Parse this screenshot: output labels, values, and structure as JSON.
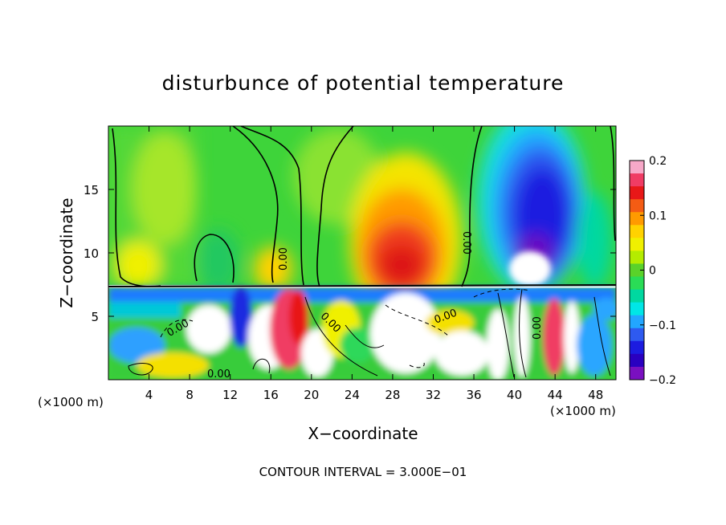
{
  "chart_data": {
    "type": "heatmap",
    "title": "disturbunce of potential temperature",
    "xlabel": "X−coordinate",
    "ylabel": "Z−coordinate",
    "x_unit_label": "(×1000 m)",
    "z_unit_label": "(×1000 m)",
    "xlim": [
      0,
      50
    ],
    "ylim": [
      0,
      20
    ],
    "x_ticks": [
      4,
      8,
      12,
      16,
      20,
      24,
      28,
      32,
      36,
      40,
      44,
      48
    ],
    "y_ticks": [
      5,
      10,
      15
    ],
    "x_tick_labels": [
      "4",
      "8",
      "12",
      "16",
      "20",
      "24",
      "28",
      "32",
      "36",
      "40",
      "44",
      "48"
    ],
    "y_tick_labels": [
      "5",
      "10",
      "15"
    ],
    "colorbar": {
      "min": -0.2,
      "max": 0.2,
      "ticks": [
        0.2,
        0.1,
        0,
        -0.1,
        -0.2
      ],
      "tick_labels": [
        "0.2",
        "0.1",
        "0",
        "−0.1",
        "−0.2"
      ],
      "colors": [
        "#f7a8c8",
        "#f03c64",
        "#e81818",
        "#f45c14",
        "#ff9a00",
        "#ffd200",
        "#f0f000",
        "#b4ec00",
        "#5ad22a",
        "#2adc56",
        "#00d8a0",
        "#00e6e6",
        "#22a6ff",
        "#2e5af0",
        "#1c1ce0",
        "#2a00c0",
        "#7a10c0"
      ]
    },
    "contour_labels": [
      "0.00",
      "0.00",
      "0.00",
      "0.00",
      "0.00",
      "0.00",
      "0.00"
    ],
    "contour_interval_text": "CONTOUR INTERVAL = 3.000E−01",
    "features": [
      {
        "name": "warm anomaly",
        "x_center": 29,
        "z_center": 11,
        "value": 0.17
      },
      {
        "name": "cold anomaly",
        "x_center": 42.5,
        "z_center": 13,
        "value": -0.18
      },
      {
        "name": "weak warm band near boundary",
        "x_center": 16,
        "z_center": 7.4,
        "value": 0.05
      }
    ]
  }
}
